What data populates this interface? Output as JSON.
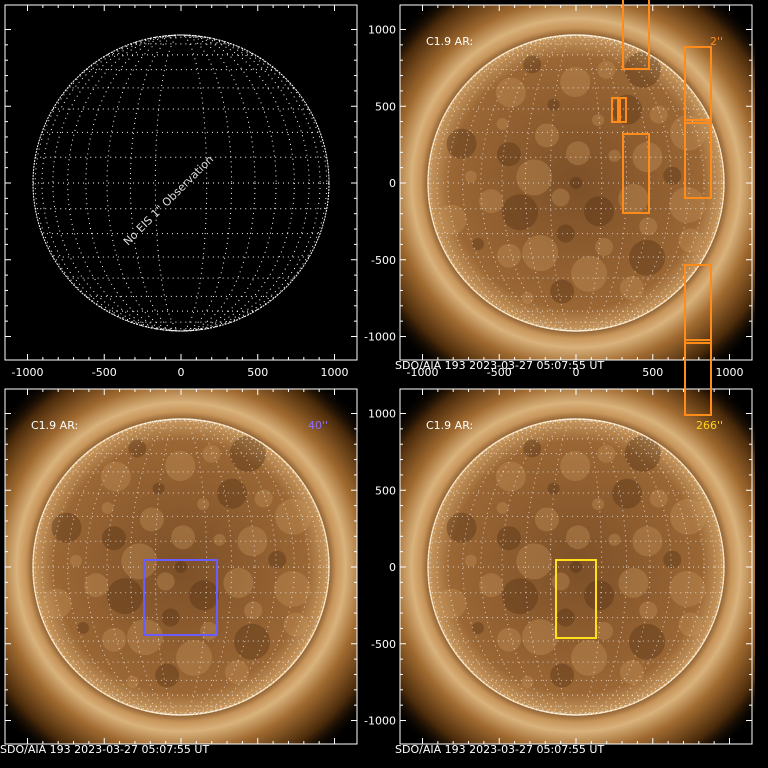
{
  "panels": [
    {
      "overlay": "No EIS 1\" Observation",
      "xticks": [
        "-1000",
        "-500",
        "0",
        "500",
        "1000"
      ]
    },
    {
      "label": "C1.9 AR:",
      "size": "2''",
      "yticks": [
        "1000",
        "500",
        "0",
        "-500",
        "-1000"
      ],
      "xticks": [
        "-1000",
        "-500",
        "0",
        "500",
        "1000"
      ],
      "footer": "SDO/AIA 193  2023-03-27 05:07:55 UT"
    },
    {
      "label": "C1.9 AR:",
      "size": "40''",
      "footer": "SDO/AIA 193  2023-03-27 05:07:55 UT"
    },
    {
      "label": "C1.9 AR:",
      "size": "266''",
      "yticks": [
        "1000",
        "500",
        "0",
        "-500",
        "-1000"
      ],
      "footer": "SDO/AIA 193  2023-03-27 05:07:55 UT"
    }
  ]
}
